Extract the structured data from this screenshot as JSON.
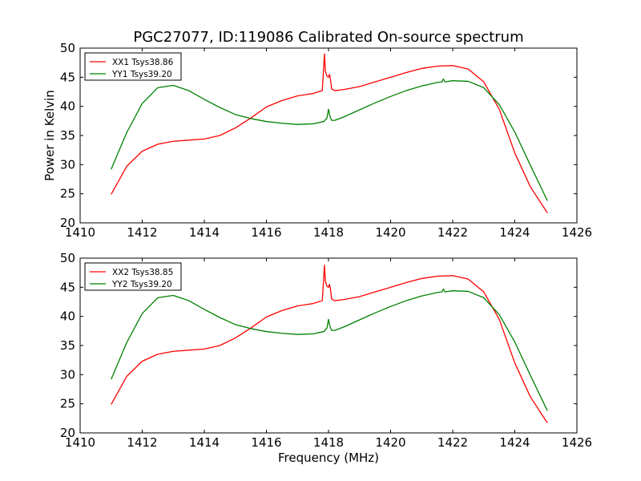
{
  "chart_data": [
    {
      "type": "line",
      "title": "PGC27077, ID:119086 Calibrated On-source spectrum",
      "xlabel": "",
      "ylabel": "Power in Kelvin",
      "xlim": [
        1410,
        1426
      ],
      "ylim": [
        20,
        50
      ],
      "xticks": [
        "1410",
        "1412",
        "1414",
        "1416",
        "1418",
        "1420",
        "1422",
        "1424",
        "1426"
      ],
      "yticks": [
        "20",
        "25",
        "30",
        "35",
        "40",
        "45",
        "50"
      ],
      "grid": false,
      "legend_position": "top-left",
      "series": [
        {
          "name": "XX1 Tsys38.86",
          "color": "#ff0000",
          "x": [
            1411.0,
            1411.5,
            1412.0,
            1412.5,
            1413.0,
            1413.5,
            1414.0,
            1414.5,
            1415.0,
            1415.5,
            1416.0,
            1416.5,
            1417.0,
            1417.5,
            1417.8,
            1417.87,
            1417.9,
            1417.95,
            1418.0,
            1418.03,
            1418.06,
            1418.1,
            1418.2,
            1418.5,
            1419.0,
            1419.5,
            1420.0,
            1420.5,
            1421.0,
            1421.5,
            1422.0,
            1422.5,
            1423.0,
            1423.5,
            1424.0,
            1424.5,
            1425.05
          ],
          "y": [
            24.9,
            29.7,
            32.3,
            33.5,
            34.0,
            34.2,
            34.4,
            35.0,
            36.3,
            38.0,
            39.9,
            41.0,
            41.8,
            42.2,
            42.7,
            49.0,
            46.0,
            45.2,
            45.0,
            45.5,
            44.8,
            43.0,
            42.7,
            42.9,
            43.4,
            44.2,
            45.0,
            45.8,
            46.5,
            46.9,
            47.0,
            46.4,
            44.2,
            39.5,
            32.0,
            26.2,
            21.7
          ]
        },
        {
          "name": "YY1 Tsys39.20",
          "color": "#008000",
          "x": [
            1411.0,
            1411.5,
            1412.0,
            1412.5,
            1413.0,
            1413.5,
            1414.0,
            1414.5,
            1415.0,
            1415.5,
            1416.0,
            1416.5,
            1417.0,
            1417.5,
            1417.85,
            1417.95,
            1418.0,
            1418.05,
            1418.1,
            1418.2,
            1418.5,
            1419.0,
            1419.5,
            1420.0,
            1420.5,
            1421.0,
            1421.5,
            1421.65,
            1421.7,
            1421.75,
            1422.0,
            1422.5,
            1423.0,
            1423.5,
            1424.0,
            1424.5,
            1425.05
          ],
          "y": [
            29.2,
            35.5,
            40.5,
            43.2,
            43.6,
            42.7,
            41.2,
            39.8,
            38.6,
            37.9,
            37.4,
            37.1,
            36.9,
            37.0,
            37.4,
            38.0,
            39.5,
            38.2,
            37.6,
            37.6,
            38.2,
            39.4,
            40.6,
            41.7,
            42.7,
            43.5,
            44.1,
            44.2,
            44.7,
            44.2,
            44.4,
            44.3,
            43.2,
            40.3,
            35.6,
            29.9,
            23.8
          ]
        }
      ]
    },
    {
      "type": "line",
      "title": "",
      "xlabel": "Frequency (MHz)",
      "ylabel": "",
      "xlim": [
        1410,
        1426
      ],
      "ylim": [
        20,
        50
      ],
      "xticks": [
        "1410",
        "1412",
        "1414",
        "1416",
        "1418",
        "1420",
        "1422",
        "1424",
        "1426"
      ],
      "yticks": [
        "20",
        "25",
        "30",
        "35",
        "40",
        "45",
        "50"
      ],
      "grid": false,
      "legend_position": "top-left",
      "series": [
        {
          "name": "XX2 Tsys38.85",
          "color": "#ff0000",
          "x": [
            1411.0,
            1411.5,
            1412.0,
            1412.5,
            1413.0,
            1413.5,
            1414.0,
            1414.5,
            1415.0,
            1415.5,
            1416.0,
            1416.5,
            1417.0,
            1417.5,
            1417.8,
            1417.87,
            1417.9,
            1417.95,
            1418.0,
            1418.03,
            1418.06,
            1418.1,
            1418.2,
            1418.5,
            1419.0,
            1419.5,
            1420.0,
            1420.5,
            1421.0,
            1421.5,
            1422.0,
            1422.5,
            1423.0,
            1423.5,
            1424.0,
            1424.5,
            1425.05
          ],
          "y": [
            24.9,
            29.7,
            32.3,
            33.5,
            34.0,
            34.2,
            34.4,
            35.0,
            36.3,
            38.0,
            39.9,
            41.0,
            41.8,
            42.2,
            42.7,
            48.8,
            46.0,
            45.2,
            45.0,
            45.5,
            44.8,
            43.0,
            42.7,
            42.9,
            43.4,
            44.2,
            45.0,
            45.8,
            46.5,
            46.9,
            47.0,
            46.4,
            44.2,
            39.5,
            32.0,
            26.2,
            21.7
          ]
        },
        {
          "name": "YY2 Tsys39.20",
          "color": "#008000",
          "x": [
            1411.0,
            1411.5,
            1412.0,
            1412.5,
            1413.0,
            1413.5,
            1414.0,
            1414.5,
            1415.0,
            1415.5,
            1416.0,
            1416.5,
            1417.0,
            1417.5,
            1417.85,
            1417.95,
            1418.0,
            1418.05,
            1418.1,
            1418.2,
            1418.5,
            1419.0,
            1419.5,
            1420.0,
            1420.5,
            1421.0,
            1421.5,
            1421.65,
            1421.7,
            1421.75,
            1422.0,
            1422.5,
            1423.0,
            1423.5,
            1424.0,
            1424.5,
            1425.05
          ],
          "y": [
            29.2,
            35.5,
            40.5,
            43.2,
            43.6,
            42.7,
            41.2,
            39.8,
            38.6,
            37.9,
            37.4,
            37.1,
            36.9,
            37.0,
            37.4,
            38.0,
            39.5,
            38.2,
            37.6,
            37.6,
            38.2,
            39.4,
            40.6,
            41.7,
            42.7,
            43.5,
            44.1,
            44.2,
            44.7,
            44.2,
            44.4,
            44.3,
            43.2,
            40.3,
            35.6,
            29.9,
            23.8
          ]
        }
      ]
    }
  ]
}
